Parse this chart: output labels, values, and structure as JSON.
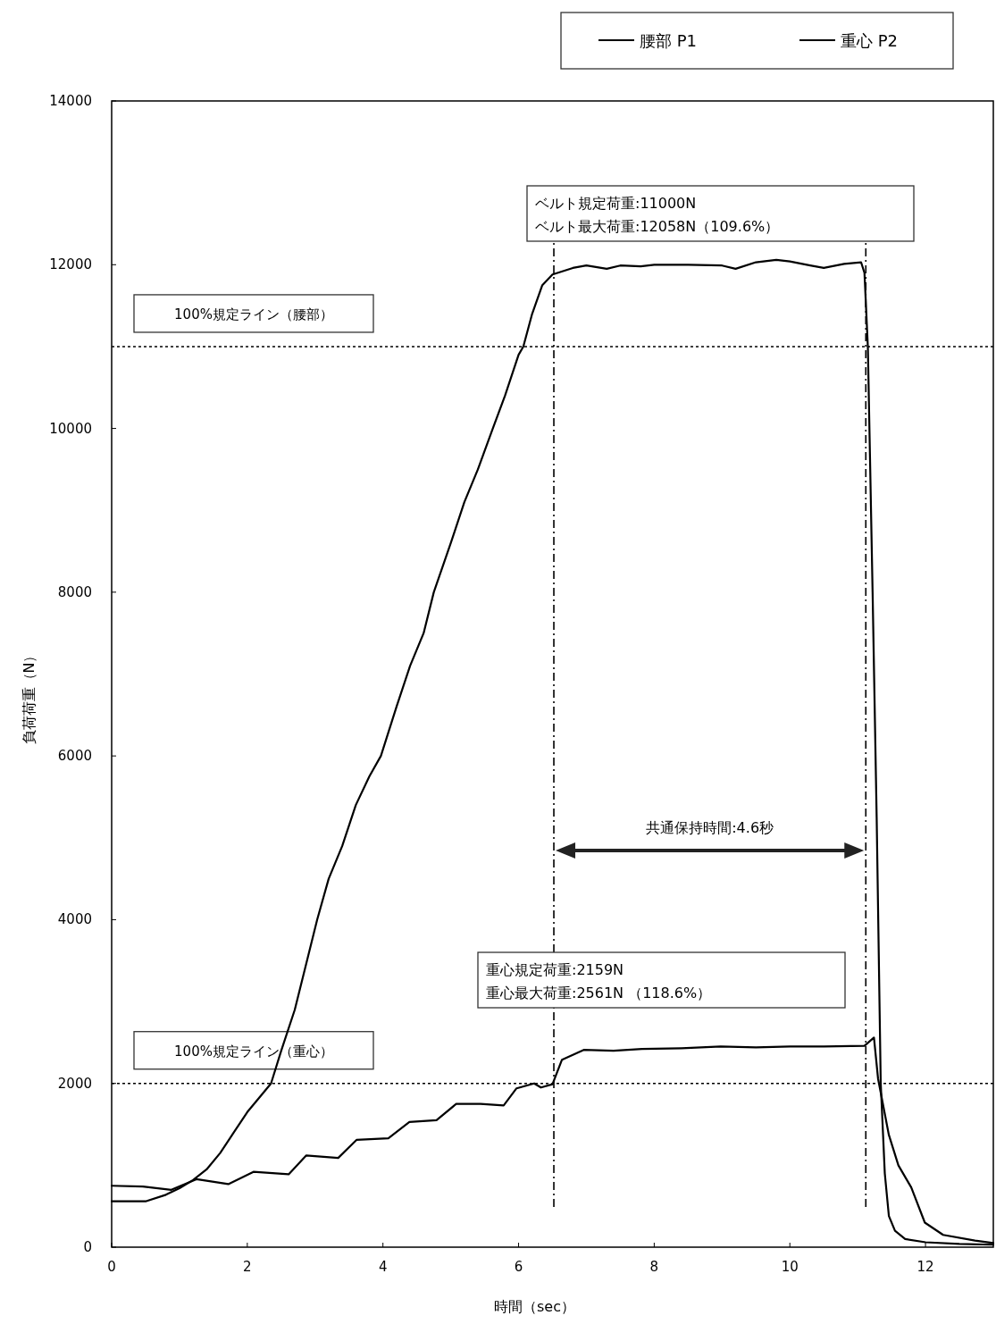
{
  "chart_data": {
    "type": "line",
    "xlabel": "時間（sec）",
    "ylabel": "負荷荷重（N）",
    "xlim": [
      0,
      13
    ],
    "xticks": [
      0,
      2,
      4,
      6,
      8,
      10,
      12
    ],
    "ylim": [
      0,
      14000
    ],
    "yticks": [
      0,
      2000,
      4000,
      6000,
      8000,
      10000,
      12000,
      14000
    ],
    "grid": false,
    "legend": "top right",
    "marker": "none",
    "line_style": "solid",
    "series": [
      {
        "name": "腰部 P1",
        "color": "#000000",
        "x": [
          0,
          0.5,
          0.8,
          1.0,
          1.2,
          1.4,
          1.6,
          1.8,
          2.0,
          2.2,
          2.35,
          2.5,
          2.7,
          2.85,
          3.03,
          3.2,
          3.4,
          3.6,
          3.8,
          3.97,
          4.2,
          4.4,
          4.6,
          4.75,
          5.0,
          5.2,
          5.4,
          5.62,
          5.8,
          6.0,
          6.07,
          6.2,
          6.35,
          6.5,
          6.8,
          7.0,
          7.3,
          7.5,
          7.8,
          8.0,
          8.5,
          9.0,
          9.2,
          9.5,
          9.8,
          10.0,
          10.3,
          10.5,
          10.8,
          11.05,
          11.1,
          11.15,
          11.22,
          11.28,
          11.34,
          11.4,
          11.46,
          11.55,
          11.7,
          12.0,
          12.5,
          13.0
        ],
        "values": [
          560,
          560,
          640,
          720,
          820,
          950,
          1150,
          1400,
          1650,
          1850,
          2000,
          2400,
          2900,
          3400,
          4000,
          4500,
          4900,
          5400,
          5750,
          6000,
          6600,
          7100,
          7500,
          8000,
          8600,
          9100,
          9500,
          10000,
          10400,
          10900,
          11000,
          11400,
          11750,
          11880,
          11960,
          11990,
          11950,
          11990,
          11980,
          12000,
          12000,
          11990,
          11950,
          12030,
          12060,
          12040,
          11990,
          11960,
          12010,
          12030,
          11900,
          11000,
          8000,
          5250,
          2000,
          900,
          380,
          200,
          100,
          60,
          40,
          30
        ]
      },
      {
        "name": "重心 P2",
        "color": "#000000",
        "x": [
          0,
          0.46,
          0.88,
          1.25,
          1.72,
          2.09,
          2.61,
          2.87,
          3.34,
          3.61,
          4.08,
          4.39,
          4.79,
          5.08,
          5.44,
          5.78,
          5.97,
          6.23,
          6.33,
          6.5,
          6.64,
          6.96,
          7.4,
          7.82,
          8.4,
          8.98,
          9.5,
          10.0,
          10.5,
          11.1,
          11.24,
          11.3,
          11.46,
          11.6,
          11.79,
          11.99,
          12.26,
          12.73,
          13.0
        ],
        "values": [
          750,
          740,
          700,
          830,
          770,
          920,
          890,
          1120,
          1090,
          1310,
          1330,
          1530,
          1550,
          1750,
          1750,
          1730,
          1940,
          2000,
          1950,
          1990,
          2290,
          2410,
          2400,
          2420,
          2430,
          2450,
          2440,
          2450,
          2450,
          2460,
          2560,
          2060,
          1370,
          1000,
          730,
          300,
          150,
          80,
          50
        ]
      }
    ],
    "ref_lines": [
      {
        "axis": "y",
        "value": 11000,
        "label": "100%規定ライン（腰部）",
        "line_style": "dotted",
        "color": "#000000"
      },
      {
        "axis": "y",
        "value": 2000,
        "label": "100%規定ライン（重心）",
        "line_style": "dotted",
        "color": "#000000"
      },
      {
        "axis": "x",
        "value": 6.52,
        "line_style": "dashdot",
        "color": "#000000"
      },
      {
        "axis": "x",
        "value": 11.12,
        "line_style": "dashdot",
        "color": "#000000"
      }
    ],
    "annotations": [
      "ベルト規定荷重:11000N",
      "ベルト最大荷重:12058N（109.6%）",
      "重心規定荷重:2159N",
      "重心最大荷重:2561N （118.6%）",
      "共通保持時間:4.6秒"
    ]
  }
}
